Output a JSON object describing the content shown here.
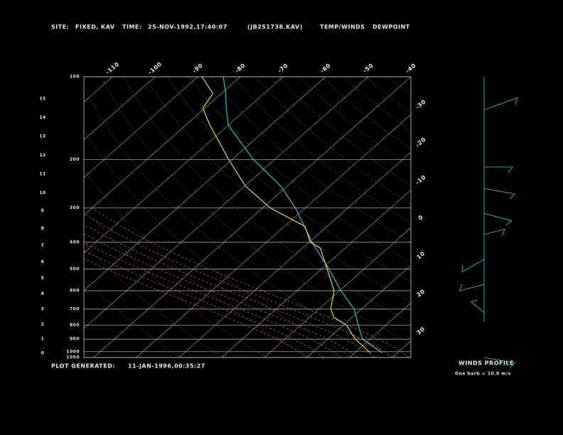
{
  "chart_data": {
    "type": "skewt",
    "header": {
      "site_label": "SITE:",
      "site": "FIXED, KAV",
      "time_label": "TIME:",
      "time": "25-NOV-1992,17:40:07",
      "file": "(JB251738.KAV)"
    },
    "footer": {
      "label": "PLOT GENERATED:",
      "time": "11-JAN-1996,00:35:27"
    },
    "winds_title": "WINDS PROFILE",
    "winds_note": "One barb = 10.0 m/s",
    "ylim": [
      1050,
      100
    ],
    "yticks": [
      100,
      200,
      300,
      400,
      500,
      600,
      700,
      800,
      900,
      1000,
      1050
    ],
    "xlim": [
      -116.7,
      -40
    ],
    "xticks": [
      -110,
      -100,
      -90,
      -80,
      -70,
      -60,
      -50,
      -40,
      -30,
      -20,
      -10,
      0,
      10,
      20,
      30
    ],
    "height_ticks": [
      0,
      1,
      2,
      3,
      4,
      5,
      6,
      7,
      8,
      9,
      10,
      11,
      12,
      13,
      14,
      15
    ],
    "series": [
      {
        "name": "TEMP/WINDS",
        "color": "#22d3d3",
        "pressure": [
          1010,
          900,
          800,
          700,
          600,
          500,
          400,
          300,
          250,
          200,
          150,
          130,
          115,
          100
        ],
        "values": [
          26.5,
          18.2,
          13.5,
          8.3,
          0.3,
          -8.3,
          -19.3,
          -32.3,
          -41.5,
          -55,
          -70,
          -75,
          -79,
          -84
        ]
      },
      {
        "name": "DEWPOINT",
        "color": "#f0f020",
        "pressure": [
          1010,
          900,
          800,
          750,
          700,
          600,
          500,
          420,
          400,
          350,
          300,
          250,
          200,
          150,
          130,
          115,
          100
        ],
        "values": [
          23.7,
          16.5,
          10.7,
          5.7,
          2.8,
          -1.3,
          -8.7,
          -15.8,
          -19.7,
          -25.2,
          -38.2,
          -49.8,
          -60.8,
          -74.3,
          -80.5,
          -82,
          -89
        ]
      }
    ],
    "winds": {
      "pressure": [
        132,
        213,
        255,
        314,
        375,
        461,
        569,
        721,
        1050
      ],
      "direction": [
        70,
        90,
        100,
        105,
        75,
        240,
        255,
        310,
        100
      ],
      "speed": [
        25,
        20,
        22,
        20,
        15,
        18,
        18,
        12,
        22
      ]
    }
  }
}
